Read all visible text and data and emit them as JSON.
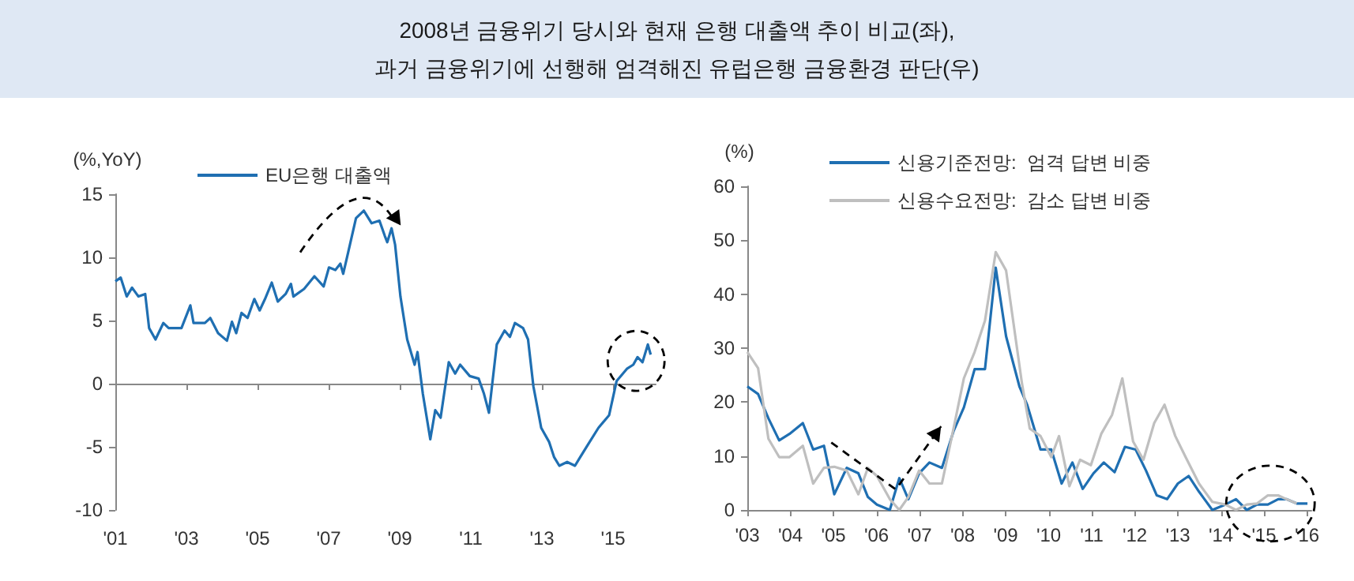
{
  "chart_data": [
    {
      "type": "line",
      "title": "2008년 금융위기 당시와 현재 은행 대출액 추이 비교(좌),\n과거 금융위기에 선행해 엄격해진 유럽은행 금융환경 판단(우)",
      "ylabel": "(%,YoY)",
      "legend": "top",
      "xlim": [
        2001,
        2016.2
      ],
      "xticks": [
        {
          "value": 2001,
          "label": "'01"
        },
        {
          "value": 2003,
          "label": "'03"
        },
        {
          "value": 2005,
          "label": "'05"
        },
        {
          "value": 2007,
          "label": "'07"
        },
        {
          "value": 2009,
          "label": "'09"
        },
        {
          "value": 2011,
          "label": "'11"
        },
        {
          "value": 2013,
          "label": "'13"
        },
        {
          "value": 2015,
          "label": "'15"
        }
      ],
      "ylim": [
        -10,
        15
      ],
      "yticks": [
        -10,
        -5,
        0,
        5,
        10,
        15
      ],
      "series": [
        {
          "name": "EU은행 대출액",
          "color": "#1f6fb2",
          "x": [
            2001.0,
            2001.15,
            2001.32,
            2001.47,
            2001.65,
            2001.84,
            2001.95,
            2002.13,
            2002.35,
            2002.5,
            2002.86,
            2003.11,
            2003.2,
            2003.52,
            2003.67,
            2003.89,
            2004.14,
            2004.28,
            2004.4,
            2004.55,
            2004.72,
            2004.91,
            2005.06,
            2005.21,
            2005.4,
            2005.57,
            2005.79,
            2005.94,
            2006.01,
            2006.31,
            2006.6,
            2006.86,
            2007.01,
            2007.19,
            2007.33,
            2007.41,
            2007.55,
            2007.77,
            2007.99,
            2008.21,
            2008.43,
            2008.58,
            2008.65,
            2008.77,
            2008.87,
            2009.02,
            2009.21,
            2009.42,
            2009.5,
            2009.65,
            2009.86,
            2010.0,
            2010.15,
            2010.38,
            2010.56,
            2010.7,
            2010.97,
            2011.22,
            2011.37,
            2011.51,
            2011.73,
            2011.95,
            2012.1,
            2012.24,
            2012.47,
            2012.61,
            2012.76,
            2012.98,
            2013.2,
            2013.34,
            2013.49,
            2013.71,
            2013.93,
            2014.08,
            2014.3,
            2014.59,
            2014.89,
            2015.1,
            2015.4,
            2015.57,
            2015.69,
            2015.83,
            2015.98,
            2016.06
          ],
          "values": [
            8.1,
            8.4,
            6.9,
            7.6,
            6.9,
            7.1,
            4.4,
            3.5,
            4.8,
            4.4,
            4.4,
            6.2,
            4.8,
            4.8,
            5.2,
            4.0,
            3.4,
            4.9,
            4.0,
            5.6,
            5.2,
            6.7,
            5.8,
            6.7,
            8.0,
            6.5,
            7.1,
            7.9,
            6.9,
            7.5,
            8.5,
            7.7,
            9.2,
            9.0,
            9.5,
            8.7,
            10.4,
            13.1,
            13.7,
            12.7,
            12.9,
            11.7,
            11.2,
            12.3,
            11.0,
            6.9,
            3.5,
            1.5,
            2.5,
            -0.8,
            -4.4,
            -2.1,
            -2.7,
            1.7,
            0.8,
            1.5,
            0.6,
            0.4,
            -0.8,
            -2.3,
            3.1,
            4.2,
            3.7,
            4.8,
            4.4,
            3.5,
            -0.2,
            -3.5,
            -4.6,
            -5.8,
            -6.5,
            -6.2,
            -6.5,
            -5.8,
            -4.8,
            -3.5,
            -2.5,
            0.2,
            1.2,
            1.5,
            2.1,
            1.7,
            3.1,
            2.3
          ]
        }
      ]
    },
    {
      "type": "line",
      "ylabel": "(%)",
      "legend": "top",
      "xlim": [
        2003,
        2016.1
      ],
      "xticks": [
        {
          "value": 2003,
          "label": "'03"
        },
        {
          "value": 2004,
          "label": "'04"
        },
        {
          "value": 2005,
          "label": "'05"
        },
        {
          "value": 2006,
          "label": "'06"
        },
        {
          "value": 2007,
          "label": "'07"
        },
        {
          "value": 2008,
          "label": "'08"
        },
        {
          "value": 2009,
          "label": "'09"
        },
        {
          "value": 2010,
          "label": "'10"
        },
        {
          "value": 2011,
          "label": "'11"
        },
        {
          "value": 2012,
          "label": "'12"
        },
        {
          "value": 2013,
          "label": "'13"
        },
        {
          "value": 2014,
          "label": "'14"
        },
        {
          "value": 2015,
          "label": "'15"
        },
        {
          "value": 2016,
          "label": "'16"
        }
      ],
      "ylim": [
        0,
        60
      ],
      "yticks": [
        0,
        10,
        20,
        30,
        40,
        50,
        60
      ],
      "series": [
        {
          "name": "신용기준전망:  엄격 답변 비중",
          "color": "#1f6fb2",
          "x": [
            2003.0,
            2003.25,
            2003.49,
            2003.74,
            2003.98,
            2004.29,
            2004.53,
            2004.78,
            2005.02,
            2005.31,
            2005.58,
            2005.8,
            2006.01,
            2006.31,
            2006.53,
            2006.74,
            2006.99,
            2007.23,
            2007.52,
            2007.79,
            2008.03,
            2008.28,
            2008.52,
            2008.77,
            2009.01,
            2009.32,
            2009.5,
            2009.81,
            2010.06,
            2010.3,
            2010.55,
            2010.79,
            2011.04,
            2011.28,
            2011.53,
            2011.77,
            2012.02,
            2012.26,
            2012.51,
            2012.75,
            2013.0,
            2013.25,
            2013.49,
            2013.8,
            2014.1,
            2014.35,
            2014.6,
            2014.84,
            2015.09,
            2015.33,
            2015.52,
            2015.76,
            2016.01
          ],
          "values": [
            22.9,
            21.5,
            17,
            12.9,
            14.1,
            16.1,
            11.2,
            11.9,
            2.9,
            7.8,
            6.8,
            2.4,
            1.0,
            0,
            5.9,
            2.0,
            6.8,
            8.8,
            7.8,
            14.6,
            19,
            26.1,
            26.1,
            44.9,
            32.2,
            22.9,
            19.5,
            11.2,
            11.2,
            4.9,
            8.8,
            3.9,
            6.8,
            8.8,
            7.0,
            11.7,
            11.2,
            7.3,
            2.7,
            2.0,
            4.9,
            6.3,
            3.4,
            0,
            1.0,
            2.0,
            0,
            1.0,
            1.0,
            2.0,
            2.0,
            1.2,
            1.2
          ]
        },
        {
          "name": "신용수요전망:  감소 답변 비중",
          "color": "#bfbfbf",
          "x": [
            2003.0,
            2003.25,
            2003.49,
            2003.74,
            2003.98,
            2004.29,
            2004.53,
            2004.78,
            2005.02,
            2005.31,
            2005.58,
            2005.8,
            2006.01,
            2006.31,
            2006.53,
            2006.74,
            2006.99,
            2007.23,
            2007.52,
            2007.79,
            2008.03,
            2008.28,
            2008.52,
            2008.77,
            2009.01,
            2009.38,
            2009.56,
            2009.81,
            2010.06,
            2010.24,
            2010.48,
            2010.73,
            2010.98,
            2011.22,
            2011.47,
            2011.71,
            2011.96,
            2012.2,
            2012.45,
            2012.69,
            2012.94,
            2013.18,
            2013.49,
            2013.8,
            2014.1,
            2014.35,
            2014.6,
            2014.84,
            2015.09,
            2015.33,
            2015.52,
            2015.76
          ],
          "values": [
            29.3,
            26.3,
            13.2,
            9.8,
            9.8,
            11.9,
            4.9,
            7.8,
            8.0,
            7.3,
            2.9,
            7.8,
            6.3,
            2.0,
            0,
            2.4,
            7.3,
            4.9,
            4.9,
            15.1,
            24.4,
            29.3,
            35.1,
            47.8,
            44.4,
            23.4,
            15.1,
            13.7,
            9.8,
            13.7,
            4.4,
            9.3,
            8.3,
            14.1,
            17.6,
            24.4,
            12.7,
            9.3,
            16.1,
            19.5,
            13.7,
            9.8,
            4.9,
            1.5,
            1.0,
            0,
            1.0,
            1.2,
            2.7,
            2.7,
            2.0,
            1.2
          ]
        }
      ]
    }
  ]
}
